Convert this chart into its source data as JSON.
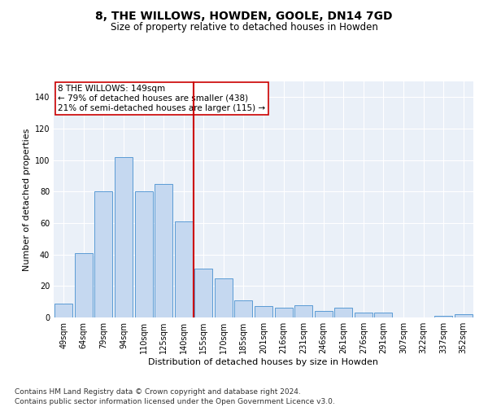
{
  "title": "8, THE WILLOWS, HOWDEN, GOOLE, DN14 7GD",
  "subtitle": "Size of property relative to detached houses in Howden",
  "xlabel": "Distribution of detached houses by size in Howden",
  "ylabel": "Number of detached properties",
  "categories": [
    "49sqm",
    "64sqm",
    "79sqm",
    "94sqm",
    "110sqm",
    "125sqm",
    "140sqm",
    "155sqm",
    "170sqm",
    "185sqm",
    "201sqm",
    "216sqm",
    "231sqm",
    "246sqm",
    "261sqm",
    "276sqm",
    "291sqm",
    "307sqm",
    "322sqm",
    "337sqm",
    "352sqm"
  ],
  "values": [
    9,
    41,
    80,
    102,
    80,
    85,
    61,
    31,
    25,
    11,
    7,
    6,
    8,
    4,
    6,
    3,
    3,
    0,
    0,
    1,
    2
  ],
  "bar_color": "#c5d8f0",
  "bar_edge_color": "#5b9bd5",
  "vline_x": 6.5,
  "vline_color": "#cc0000",
  "annotation_text": "8 THE WILLOWS: 149sqm\n← 79% of detached houses are smaller (438)\n21% of semi-detached houses are larger (115) →",
  "annotation_box_color": "#ffffff",
  "annotation_box_edge": "#cc0000",
  "ylim": [
    0,
    150
  ],
  "yticks": [
    0,
    20,
    40,
    60,
    80,
    100,
    120,
    140
  ],
  "bg_color": "#eaf0f8",
  "grid_color": "#ffffff",
  "footer": "Contains HM Land Registry data © Crown copyright and database right 2024.\nContains public sector information licensed under the Open Government Licence v3.0.",
  "title_fontsize": 10,
  "subtitle_fontsize": 8.5,
  "axis_label_fontsize": 8,
  "tick_fontsize": 7,
  "annotation_fontsize": 7.5,
  "footer_fontsize": 6.5
}
